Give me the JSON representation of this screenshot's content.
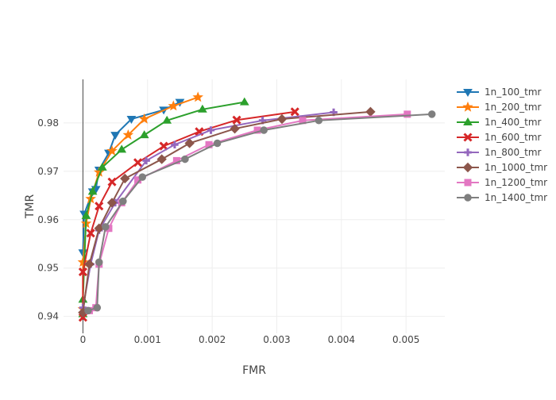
{
  "chart_data": {
    "type": "line",
    "title": "",
    "xlabel": "FMR",
    "ylabel": "TMR",
    "xlim": [
      -0.0003,
      0.0056
    ],
    "ylim": [
      0.9365,
      0.989
    ],
    "x_ticks": [
      0,
      0.001,
      0.002,
      0.003,
      0.004,
      0.005
    ],
    "x_tick_labels": [
      "0",
      "0.001",
      "0.002",
      "0.003",
      "0.004",
      "0.005"
    ],
    "y_ticks": [
      0.94,
      0.95,
      0.96,
      0.97,
      0.98
    ],
    "y_tick_labels": [
      "0.94",
      "0.95",
      "0.96",
      "0.97",
      "0.98"
    ],
    "grid": true,
    "legend_position": "top-right",
    "series": [
      {
        "name": "1n_100_tmr",
        "color": "#1f77b4",
        "marker": "triangle-down",
        "x": [
          0,
          2e-05,
          0.00015,
          0.0002,
          0.00025,
          0.0004,
          0.0005,
          0.00075,
          0.00125,
          0.0015
        ],
        "y": [
          0.9532,
          0.9612,
          0.9658,
          0.9663,
          0.9703,
          0.9738,
          0.9775,
          0.9808,
          0.9827,
          0.9843
        ]
      },
      {
        "name": "1n_200_tmr",
        "color": "#ff7f0e",
        "marker": "star",
        "x": [
          0,
          0,
          5e-05,
          0.00012,
          0.00025,
          0.00045,
          0.0007,
          0.00095,
          0.0014,
          0.00178
        ],
        "y": [
          0.9415,
          0.9512,
          0.9592,
          0.9643,
          0.9698,
          0.9742,
          0.9775,
          0.9808,
          0.9835,
          0.9853
        ]
      },
      {
        "name": "1n_400_tmr",
        "color": "#2ca02c",
        "marker": "triangle-up",
        "x": [
          0,
          0,
          5e-05,
          0.00015,
          0.0003,
          0.0006,
          0.00095,
          0.0013,
          0.00185,
          0.0025
        ],
        "y": [
          0.9405,
          0.9435,
          0.9608,
          0.9658,
          0.9708,
          0.9745,
          0.9775,
          0.9805,
          0.9828,
          0.9843
        ]
      },
      {
        "name": "1n_600_tmr",
        "color": "#d62728",
        "marker": "x",
        "x": [
          0,
          0,
          0.00012,
          0.00025,
          0.00045,
          0.00085,
          0.00125,
          0.0018,
          0.00238,
          0.00328
        ],
        "y": [
          0.9398,
          0.9492,
          0.9572,
          0.9628,
          0.9678,
          0.9718,
          0.9752,
          0.9782,
          0.9806,
          0.9823
        ]
      },
      {
        "name": "1n_800_tmr",
        "color": "#9467bd",
        "marker": "cross",
        "x": [
          0,
          0.00012,
          0.00025,
          0.0005,
          0.00098,
          0.00142,
          0.00198,
          0.00278,
          0.00388
        ],
        "y": [
          0.9418,
          0.9508,
          0.9578,
          0.9635,
          0.9722,
          0.9755,
          0.9785,
          0.9805,
          0.9822
        ]
      },
      {
        "name": "1n_1000_tmr",
        "color": "#8c564b",
        "marker": "diamond",
        "x": [
          0,
          0.0001,
          0.00025,
          0.00045,
          0.00065,
          0.00122,
          0.00165,
          0.00235,
          0.00308,
          0.00445
        ],
        "y": [
          0.9408,
          0.9508,
          0.9582,
          0.9635,
          0.9685,
          0.9725,
          0.9758,
          0.9788,
          0.9808,
          0.9823
        ]
      },
      {
        "name": "1n_1200_tmr",
        "color": "#e377c2",
        "marker": "square",
        "x": [
          0.0001,
          0.0002,
          0.00025,
          0.0004,
          0.0006,
          0.00085,
          0.00145,
          0.00195,
          0.0027,
          0.0034,
          0.00502
        ],
        "y": [
          0.9412,
          0.9418,
          0.9508,
          0.9582,
          0.9635,
          0.9682,
          0.9722,
          0.9755,
          0.9785,
          0.9805,
          0.9818
        ]
      },
      {
        "name": "1n_1400_tmr",
        "color": "#7f7f7f",
        "marker": "circle",
        "x": [
          8e-05,
          0.00022,
          0.00025,
          0.00035,
          0.00062,
          0.00092,
          0.00158,
          0.00208,
          0.0028,
          0.00365,
          0.0054
        ],
        "y": [
          0.9412,
          0.9418,
          0.9512,
          0.9585,
          0.9638,
          0.9688,
          0.9725,
          0.9758,
          0.9785,
          0.9805,
          0.9818
        ]
      }
    ]
  }
}
